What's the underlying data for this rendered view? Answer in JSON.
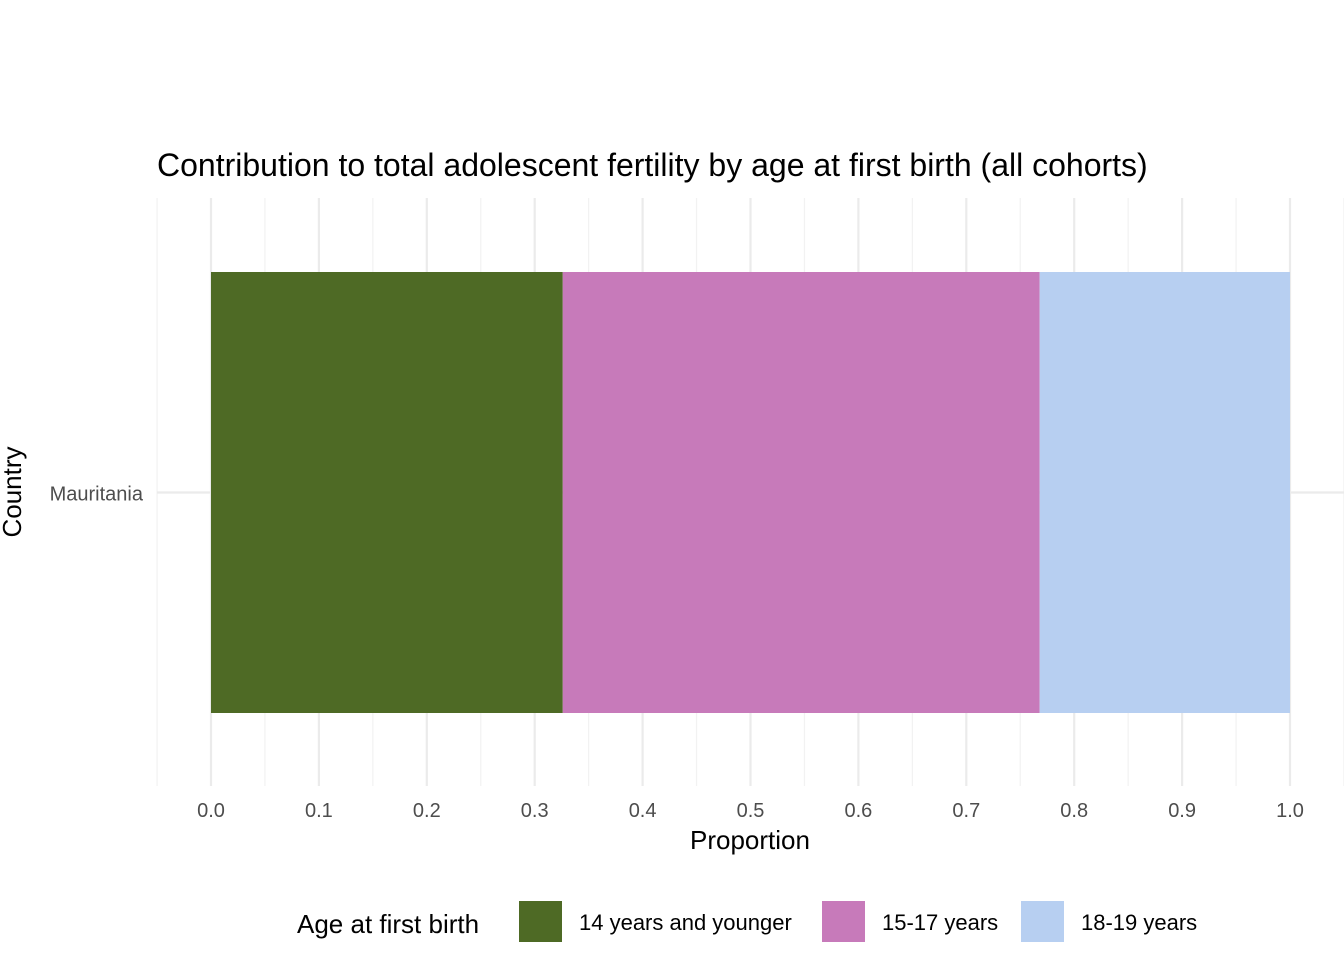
{
  "chart_data": {
    "type": "bar",
    "orientation": "horizontal",
    "stacked": true,
    "title": "Contribution to total adolescent fertility by age at first birth (all cohorts)",
    "xlabel": "Proportion",
    "ylabel": "Country",
    "categories": [
      "Mauritania"
    ],
    "xlim": [
      -0.05,
      1.05
    ],
    "x_ticks": [
      "0.0",
      "0.1",
      "0.2",
      "0.3",
      "0.4",
      "0.5",
      "0.6",
      "0.7",
      "0.8",
      "0.9",
      "1.0"
    ],
    "grid": true,
    "legend": {
      "title": "Age at first birth",
      "position": "bottom"
    },
    "series": [
      {
        "name": "14 years and younger",
        "values": [
          0.326
        ],
        "color": "#4e6a25"
      },
      {
        "name": "15-17 years",
        "values": [
          0.442
        ],
        "color": "#c77aba"
      },
      {
        "name": "18-19 years",
        "values": [
          0.232
        ],
        "color": "#b7cff1"
      }
    ]
  }
}
